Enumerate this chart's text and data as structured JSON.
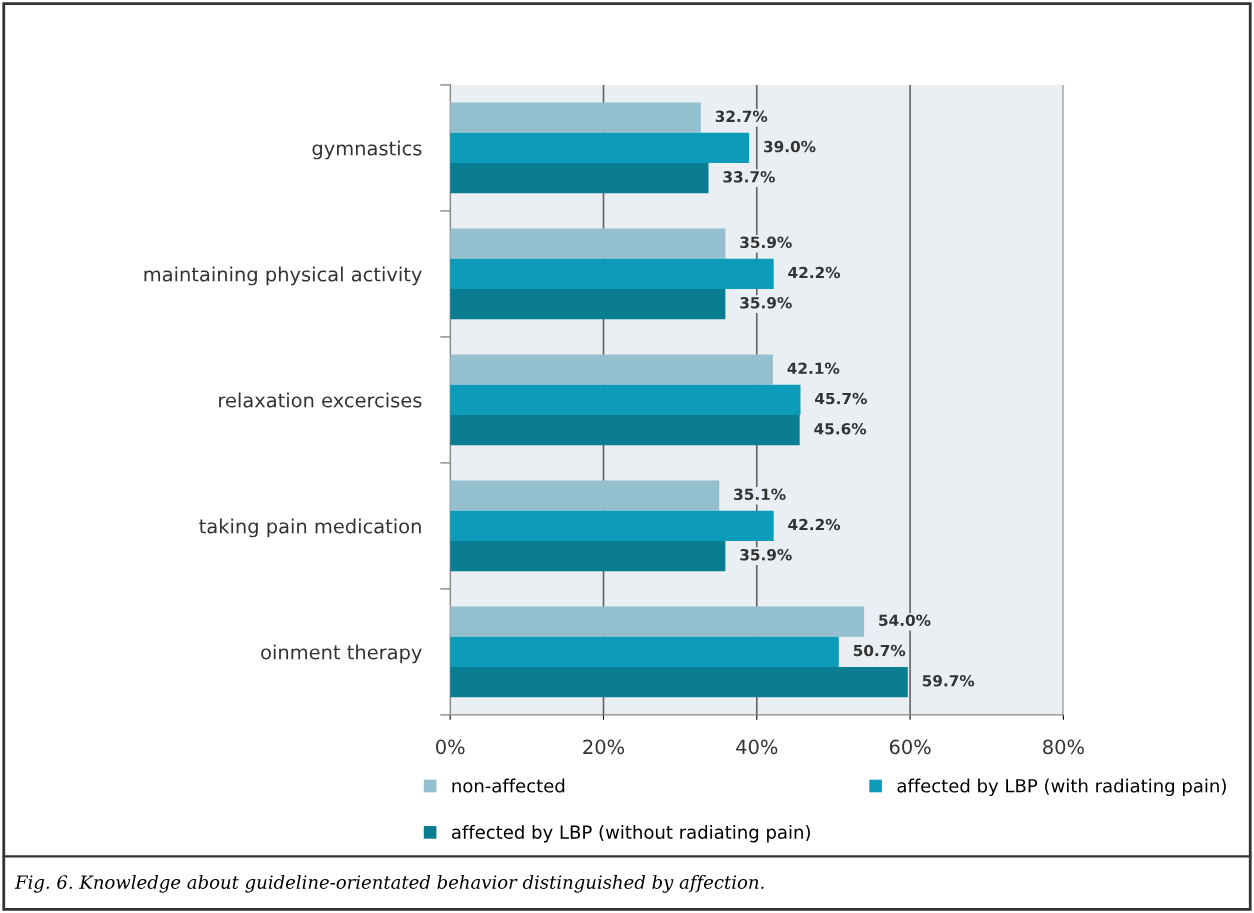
{
  "chart_data": {
    "type": "bar",
    "orientation": "horizontal",
    "categories": [
      "gymnastics",
      "maintaining physical activity",
      "relaxation excercises",
      "taking pain medication",
      "oinment therapy"
    ],
    "series": [
      {
        "name": "non-affected",
        "color": "#93bfcf",
        "values": [
          32.7,
          35.9,
          42.1,
          35.1,
          54.0
        ],
        "value_labels": [
          "32.7%",
          "35.9%",
          "42.1%",
          "35.1%",
          "54.0%"
        ]
      },
      {
        "name": "affected by LBP (with radiating pain)",
        "color": "#0d9bba",
        "values": [
          39.0,
          42.2,
          45.7,
          42.2,
          50.7
        ],
        "value_labels": [
          "39.0%",
          "42.2%",
          "45.7%",
          "42.2%",
          "50.7%"
        ]
      },
      {
        "name": "affected by LBP (without radiating pain)",
        "color": "#0b7d92",
        "values": [
          33.7,
          35.9,
          45.6,
          35.9,
          59.7
        ],
        "value_labels": [
          "33.7%",
          "35.9%",
          "45.6%",
          "35.9%",
          "59.7%"
        ]
      }
    ],
    "xlim": [
      0,
      80
    ],
    "xticks": [
      {
        "value": 0,
        "label": "0%"
      },
      {
        "value": 20,
        "label": "20%"
      },
      {
        "value": 40,
        "label": "40%"
      },
      {
        "value": 60,
        "label": "60%"
      },
      {
        "value": 80,
        "label": "80%"
      }
    ],
    "grid": "x",
    "legend": "bottom",
    "annotations": [
      "Fig. 6. Knowledge about guideline-orientated behavior distinguished by affection."
    ]
  }
}
